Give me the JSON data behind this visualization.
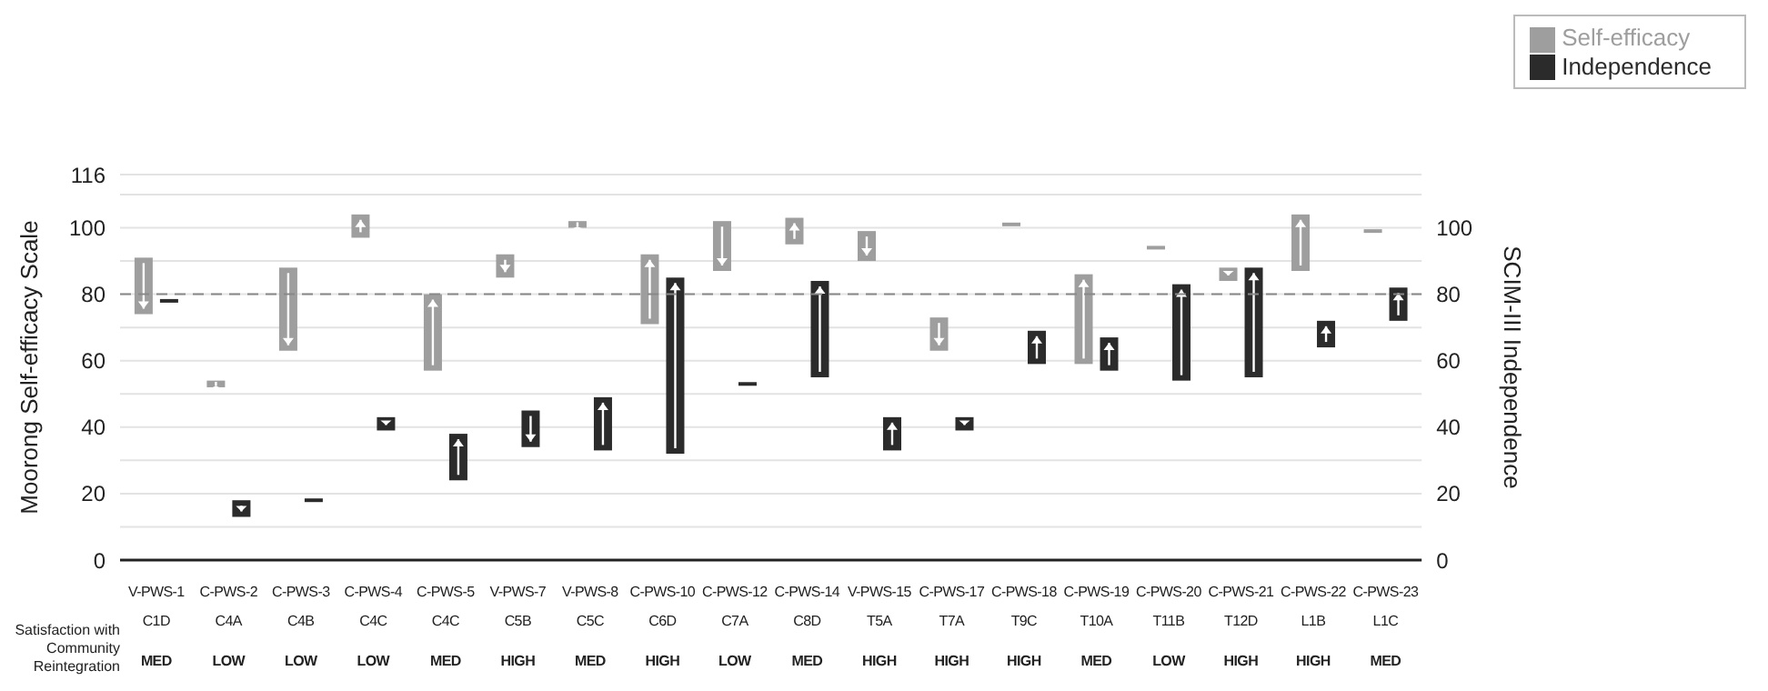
{
  "chart_data": {
    "type": "bar",
    "categories": [
      "V-PWS-1\nC1D\nMED",
      "C-PWS-2\nC4A\nLOW",
      "C-PWS-3\nC4B\nLOW",
      "C-PWS-4\nC4C\nLOW",
      "C-PWS-5\nC4C\nMED",
      "V-PWS-7\nC5B\nHIGH",
      "V-PWS-8\nC5C\nMED",
      "C-PWS-10\nC6D\nHIGH",
      "C-PWS-12\nC7A\nLOW",
      "C-PWS-14\nC8D\nMED",
      "V-PWS-15\nT5A\nHIGH",
      "C-PWS-17\nT7A\nHIGH",
      "C-PWS-18\nT9C\nHIGH",
      "C-PWS-19\nT10A\nMED",
      "C-PWS-20\nT11B\nLOW",
      "C-PWS-21\nT12D\nHIGH",
      "C-PWS-22\nL1B\nHIGH",
      "C-PWS-23\nL1C\nMED"
    ],
    "series": [
      {
        "name": "Self-efficacy",
        "color": "#9e9e9e",
        "base": [
          91,
          52,
          88,
          97,
          57,
          92,
          100,
          71,
          102,
          95,
          99,
          73,
          101,
          59,
          94,
          88,
          87,
          99
        ],
        "values": [
          -17,
          2,
          -25,
          7,
          23,
          -7,
          2,
          21,
          -15,
          8,
          -9,
          -10,
          0,
          27,
          0,
          -4,
          17,
          0
        ]
      },
      {
        "name": "Independence",
        "color": "#2b2b2b",
        "axis": "y2",
        "base": [
          78,
          18,
          18,
          43,
          24,
          45,
          33,
          32,
          53,
          55,
          33,
          43,
          59,
          57,
          54,
          55,
          64,
          72
        ],
        "values": [
          0,
          -5,
          0,
          -4,
          14,
          -11,
          16,
          53,
          0,
          29,
          10,
          -4,
          10,
          10,
          29,
          33,
          8,
          10
        ]
      }
    ],
    "ylabel": "Moorong Self-efficacy Scale",
    "y2label": "SCIM-III Independence",
    "ylim": [
      0,
      116
    ],
    "yticks": [
      0,
      {
        "value": 10,
        "label": null
      },
      20,
      {
        "value": 30,
        "label": null
      },
      40,
      {
        "value": 50,
        "label": null
      },
      60,
      {
        "value": 70,
        "label": null
      },
      80,
      {
        "value": 90,
        "label": null
      },
      100,
      {
        "value": 110,
        "label": null
      },
      116
    ],
    "y2lim": [
      0,
      116
    ],
    "y2ticks": [
      0,
      20,
      40,
      60,
      80,
      100
    ],
    "ref_lines": [
      {
        "axis": "y",
        "value": 80,
        "color": "#888888",
        "line_style": "dashed"
      }
    ],
    "annotations": [
      "Satisfaction with Community Reintegration"
    ],
    "grid": "y",
    "legend": "top right"
  }
}
